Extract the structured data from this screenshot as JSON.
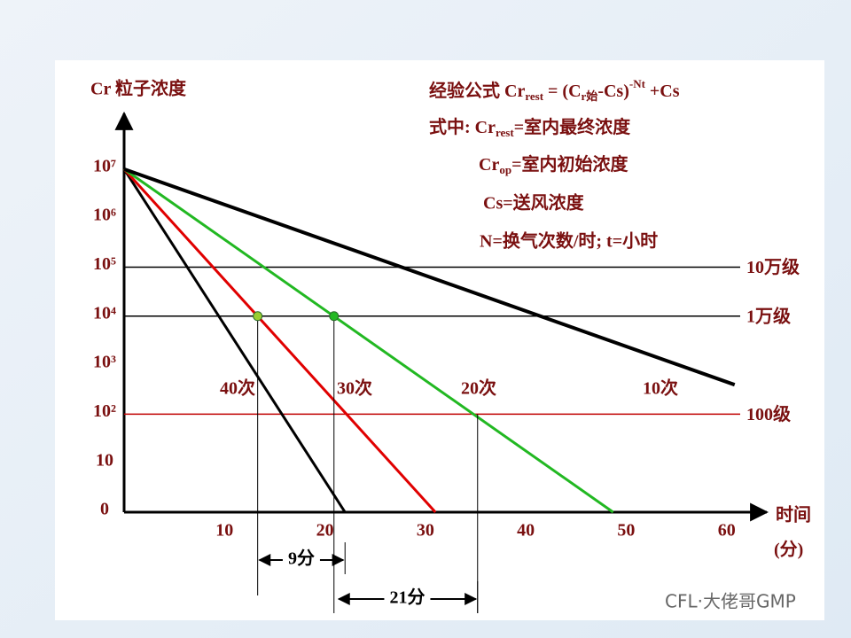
{
  "chart_data": {
    "type": "line",
    "y_label": "Cr 粒子浓度",
    "x_label": [
      "时间",
      "(分)"
    ],
    "xlim": [
      0,
      64
    ],
    "ylim": [
      0,
      8.1
    ],
    "xticks": [
      10,
      20,
      30,
      40,
      50,
      60
    ],
    "yticks": [
      0,
      {
        "value": 1,
        "label": "10"
      },
      {
        "value": 2,
        "label": "10²"
      },
      {
        "value": 3,
        "label": "10³"
      },
      {
        "value": 4,
        "label": "10⁴"
      },
      {
        "value": 5,
        "label": "10⁵"
      },
      {
        "value": 6,
        "label": "10⁶"
      },
      {
        "value": 7,
        "label": "10⁷"
      }
    ],
    "series": [
      {
        "name": "40次",
        "color": "#000000",
        "x": [
          0,
          22
        ],
        "values": [
          7,
          0
        ]
      },
      {
        "name": "30次",
        "color": "#e00000",
        "x": [
          0,
          31
        ],
        "values": [
          7,
          0
        ]
      },
      {
        "name": "20次",
        "color": "#22b822",
        "x": [
          0,
          48.7
        ],
        "values": [
          7,
          0
        ]
      },
      {
        "name": "10次",
        "color": "#000000",
        "x": [
          0,
          60.8
        ],
        "values": [
          7,
          2.6
        ]
      }
    ],
    "ref_lines": [
      {
        "name": "10万级",
        "value": 5,
        "color": "#000000"
      },
      {
        "name": "1万级",
        "value": 4,
        "color": "#000000"
      },
      {
        "name": "100级",
        "value": 2,
        "color": "#c00000"
      }
    ],
    "points": [
      {
        "x": 13.3,
        "y": 4,
        "color": "#9acd32"
      },
      {
        "x": 20.9,
        "y": 4,
        "color": "#22b822"
      },
      {
        "x": 35.2,
        "y": 2
      }
    ],
    "brackets": [
      {
        "label": "9分",
        "x": [
          13.3,
          22
        ]
      },
      {
        "label": "21分",
        "x": [
          21.2,
          35.2
        ]
      }
    ],
    "formula": [
      [
        "经验公式 Cr",
        "rest",
        " = (C",
        "r始",
        "-Cs)",
        "-Nt",
        " +Cs"
      ],
      [
        "式中: Cr",
        "rest",
        "=室内最终浓度"
      ],
      [
        "Cr",
        "op",
        "=室内初始浓度"
      ],
      [
        "Cs=送风浓度"
      ],
      [
        "N=换气次数/时;  t=小时"
      ]
    ],
    "watermark": "CFL·大佬哥GMP"
  }
}
